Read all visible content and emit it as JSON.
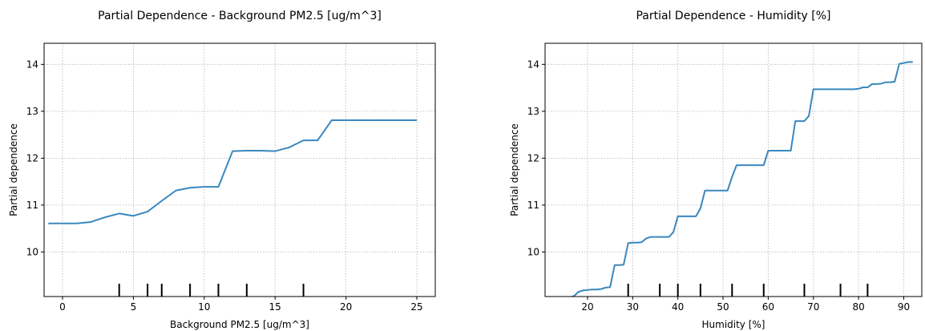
{
  "chart_data": [
    {
      "type": "line",
      "title": "Partial Dependence - Background PM2.5 [ug/m^3]",
      "xlabel": "Background PM2.5 [ug/m^3]",
      "ylabel": "Partial dependence",
      "xlim": [
        -1.3,
        26.3
      ],
      "ylim": [
        9.05,
        14.45
      ],
      "xticks": [
        0,
        5,
        10,
        15,
        20,
        25
      ],
      "yticks": [
        10,
        11,
        12,
        13,
        14
      ],
      "grid": true,
      "line_color": "#3a87bf",
      "series": [
        {
          "x": [
            -1,
            0,
            1,
            2,
            3,
            4,
            5,
            6,
            7,
            8,
            9,
            10,
            11,
            12,
            13,
            14,
            15,
            16,
            17,
            18,
            19,
            20,
            21,
            22,
            23,
            24,
            25
          ],
          "y": [
            10.61,
            10.61,
            10.61,
            10.64,
            10.74,
            10.82,
            10.77,
            10.86,
            11.09,
            11.31,
            11.37,
            11.39,
            11.39,
            12.15,
            12.16,
            12.16,
            12.15,
            12.23,
            12.38,
            12.38,
            12.81,
            12.81,
            12.81,
            12.81,
            12.81,
            12.81,
            12.81
          ]
        }
      ],
      "rug_x": [
        4,
        6,
        7,
        9,
        11,
        13,
        17
      ]
    },
    {
      "type": "line",
      "title": "Partial Dependence - Humidity [%]",
      "xlabel": "Humidity [%]",
      "ylabel": "Partial dependence",
      "xlim": [
        10.6,
        94.0
      ],
      "ylim": [
        9.05,
        14.45
      ],
      "xticks": [
        20,
        30,
        40,
        50,
        60,
        70,
        80,
        90
      ],
      "yticks": [
        10,
        11,
        12,
        13,
        14
      ],
      "grid": true,
      "line_color": "#3a87bf",
      "series": [
        {
          "x": [
            14,
            16,
            17,
            18,
            19,
            20,
            21,
            22,
            23,
            24,
            25,
            26,
            27,
            28,
            29,
            30,
            31,
            32,
            33,
            34,
            35,
            36,
            37,
            38,
            39,
            40,
            41,
            42,
            43,
            44,
            45,
            46,
            47,
            48,
            49,
            50,
            51,
            52,
            53,
            54,
            55,
            56,
            57,
            58,
            59,
            60,
            61,
            62,
            63,
            64,
            65,
            66,
            67,
            68,
            69,
            70,
            71,
            72,
            73,
            74,
            75,
            76,
            77,
            78,
            79,
            80,
            81,
            82,
            83,
            84,
            85,
            86,
            87,
            88,
            89,
            90,
            91,
            92
          ],
          "y": [
            9.02,
            9.03,
            9.06,
            9.15,
            9.18,
            9.19,
            9.2,
            9.2,
            9.21,
            9.24,
            9.25,
            9.72,
            9.72,
            9.73,
            10.19,
            10.2,
            10.2,
            10.21,
            10.29,
            10.32,
            10.32,
            10.32,
            10.32,
            10.32,
            10.42,
            10.76,
            10.76,
            10.76,
            10.76,
            10.76,
            10.93,
            11.31,
            11.31,
            11.31,
            11.31,
            11.31,
            11.31,
            11.6,
            11.85,
            11.85,
            11.85,
            11.85,
            11.85,
            11.85,
            11.85,
            12.16,
            12.16,
            12.16,
            12.16,
            12.16,
            12.16,
            12.79,
            12.79,
            12.79,
            12.9,
            13.47,
            13.47,
            13.47,
            13.47,
            13.47,
            13.47,
            13.47,
            13.47,
            13.47,
            13.47,
            13.48,
            13.51,
            13.51,
            13.58,
            13.58,
            13.59,
            13.62,
            13.62,
            13.63,
            14.01,
            14.03,
            14.05,
            14.05
          ]
        }
      ],
      "rug_x": [
        29,
        36,
        40,
        45,
        52,
        59,
        68,
        76,
        82
      ]
    }
  ]
}
